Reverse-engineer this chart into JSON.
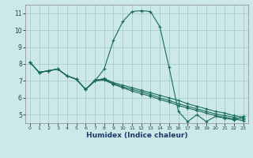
{
  "title": "",
  "xlabel": "Humidex (Indice chaleur)",
  "bg_color": "#cce8e8",
  "grid_color": "#aacccc",
  "line_color": "#1a6b5a",
  "xlim": [
    -0.5,
    23.5
  ],
  "ylim": [
    4.5,
    11.5
  ],
  "xticks": [
    0,
    1,
    2,
    3,
    4,
    5,
    6,
    7,
    8,
    9,
    10,
    11,
    12,
    13,
    14,
    15,
    16,
    17,
    18,
    19,
    20,
    21,
    22,
    23
  ],
  "yticks": [
    5,
    6,
    7,
    8,
    9,
    10,
    11
  ],
  "series1_x": [
    0,
    1,
    2,
    3,
    4,
    5,
    6,
    7,
    8,
    9,
    10,
    11,
    12,
    13,
    14,
    15,
    16,
    17,
    18,
    19,
    20,
    21,
    22,
    23
  ],
  "series1_y": [
    8.1,
    7.5,
    7.6,
    7.7,
    7.3,
    7.1,
    6.5,
    7.0,
    7.7,
    9.4,
    10.5,
    11.1,
    11.15,
    11.1,
    10.2,
    7.8,
    5.2,
    4.6,
    5.0,
    4.6,
    4.9,
    4.8,
    4.7,
    4.9
  ],
  "series2_x": [
    0,
    1,
    2,
    3,
    4,
    5,
    6,
    7,
    8,
    9,
    10,
    11,
    12,
    13,
    14,
    15,
    16,
    17,
    18,
    19,
    20,
    21,
    22,
    23
  ],
  "series2_y": [
    8.1,
    7.5,
    7.6,
    7.7,
    7.3,
    7.1,
    6.5,
    7.0,
    7.15,
    6.9,
    6.75,
    6.6,
    6.45,
    6.3,
    6.15,
    6.0,
    5.85,
    5.65,
    5.5,
    5.35,
    5.2,
    5.1,
    4.95,
    4.85
  ],
  "series3_x": [
    0,
    1,
    2,
    3,
    4,
    5,
    6,
    7,
    8,
    9,
    10,
    11,
    12,
    13,
    14,
    15,
    16,
    17,
    18,
    19,
    20,
    21,
    22,
    23
  ],
  "series3_y": [
    8.1,
    7.5,
    7.6,
    7.7,
    7.3,
    7.1,
    6.5,
    7.05,
    7.1,
    6.85,
    6.65,
    6.5,
    6.35,
    6.2,
    6.0,
    5.85,
    5.65,
    5.5,
    5.35,
    5.2,
    5.05,
    4.95,
    4.85,
    4.75
  ],
  "series4_x": [
    0,
    1,
    2,
    3,
    4,
    5,
    6,
    7,
    8,
    9,
    10,
    11,
    12,
    13,
    14,
    15,
    16,
    17,
    18,
    19,
    20,
    21,
    22,
    23
  ],
  "series4_y": [
    8.1,
    7.5,
    7.6,
    7.7,
    7.3,
    7.1,
    6.5,
    7.0,
    7.05,
    6.8,
    6.6,
    6.4,
    6.25,
    6.1,
    5.9,
    5.75,
    5.55,
    5.4,
    5.25,
    5.1,
    4.95,
    4.85,
    4.75,
    4.65
  ]
}
